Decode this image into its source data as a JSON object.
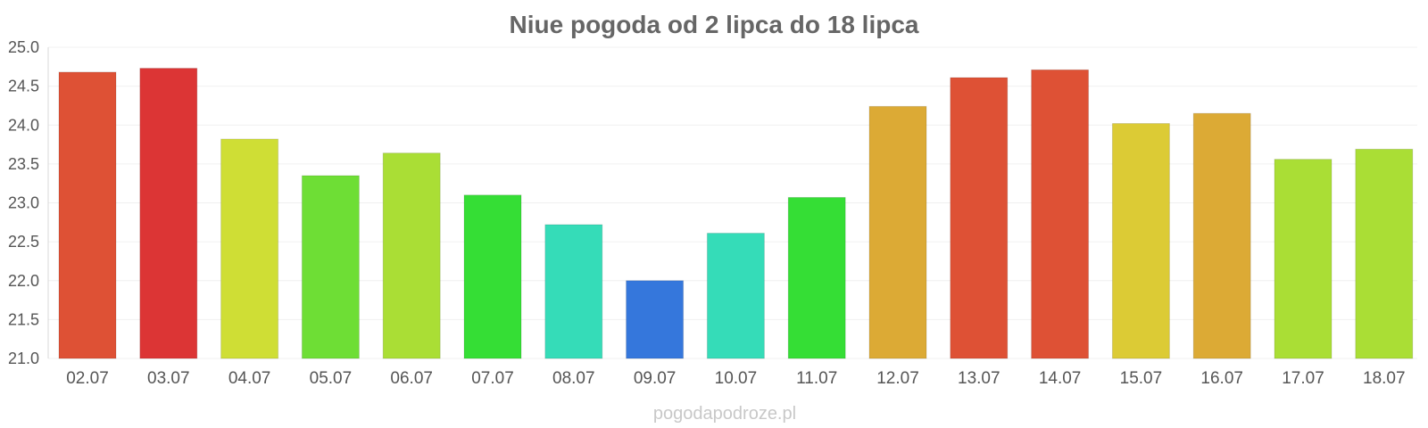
{
  "chart_data": {
    "type": "bar",
    "title": "Niue pogoda od 2 lipca do 18 lipca",
    "xlabel": "",
    "ylabel": "",
    "ylim": [
      21.0,
      25.0
    ],
    "yticks": [
      "21.0",
      "21.5",
      "22.0",
      "22.5",
      "23.0",
      "23.5",
      "24.0",
      "24.5",
      "25.0"
    ],
    "grid": true,
    "categories": [
      "02.07",
      "03.07",
      "04.07",
      "05.07",
      "06.07",
      "07.07",
      "08.07",
      "09.07",
      "10.07",
      "11.07",
      "12.07",
      "13.07",
      "14.07",
      "15.07",
      "16.07",
      "17.07",
      "18.07"
    ],
    "values": [
      24.68,
      24.73,
      23.82,
      23.35,
      23.64,
      23.1,
      22.72,
      22.0,
      22.61,
      23.07,
      24.24,
      24.61,
      24.71,
      24.02,
      24.15,
      23.56,
      23.69
    ],
    "colors": [
      "#de5135",
      "#dc3535",
      "#cfde35",
      "#6ede35",
      "#aade35",
      "#35de35",
      "#35dcb8",
      "#3577dc",
      "#35dcb8",
      "#35de35",
      "#dcaa35",
      "#de5135",
      "#de5135",
      "#dccb35",
      "#dcaa35",
      "#aade35",
      "#aade35"
    ]
  },
  "watermark": "pogodapodroze.pl"
}
